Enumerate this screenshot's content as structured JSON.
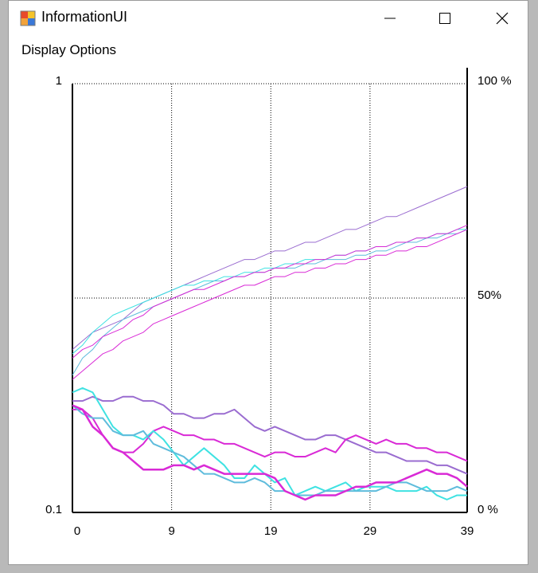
{
  "window": {
    "title": "InformationUI",
    "controls": {
      "minimize": "minimize",
      "maximize": "maximize",
      "close": "close"
    }
  },
  "menu": {
    "display_options": "Display Options"
  },
  "colors": {
    "violet": "#9a6cd0",
    "magenta": "#d92ad6",
    "cyan": "#3fe2e2",
    "skyblue": "#5fbcdc"
  },
  "chart_data": {
    "type": "line",
    "title": "",
    "x": [
      0,
      1,
      2,
      3,
      4,
      5,
      6,
      7,
      8,
      9,
      10,
      11,
      12,
      13,
      14,
      15,
      16,
      17,
      18,
      19,
      20,
      21,
      22,
      23,
      24,
      25,
      26,
      27,
      28,
      29,
      30,
      31,
      32,
      33,
      34,
      35,
      36,
      37,
      38,
      39
    ],
    "x_tick_labels": [
      "0",
      "9",
      "19",
      "29",
      "39"
    ],
    "x_ticks": [
      0,
      9.8,
      19.6,
      29.4,
      39
    ],
    "left_axis": {
      "scale": "log",
      "range": [
        0.1,
        1
      ],
      "tick_labels": [
        "1",
        "0.1"
      ]
    },
    "right_axis": {
      "range": [
        0,
        100
      ],
      "tick_labels": [
        "100 %",
        "50%",
        "0 %"
      ]
    },
    "grid": true,
    "series": [
      {
        "color": "#9a6cd0",
        "width": 1,
        "values": [
          38,
          40,
          42,
          43,
          44,
          45,
          47,
          49,
          50,
          51,
          52,
          53,
          54,
          55,
          56,
          57,
          58,
          59,
          59,
          60,
          61,
          61,
          62,
          63,
          63,
          64,
          65,
          66,
          66,
          67,
          68,
          69,
          69,
          70,
          71,
          72,
          73,
          74,
          75,
          76
        ]
      },
      {
        "color": "#3fe2e2",
        "width": 1,
        "values": [
          37,
          39,
          42,
          44,
          46,
          47,
          48,
          49,
          50,
          51,
          52,
          53,
          53,
          54,
          54,
          55,
          55,
          56,
          56,
          57,
          57,
          58,
          58,
          59,
          59,
          59,
          60,
          60,
          61,
          61,
          62,
          62,
          63,
          63,
          64,
          64,
          65,
          65,
          66,
          66
        ]
      },
      {
        "color": "#5fbcdc",
        "width": 1,
        "values": [
          32,
          36,
          38,
          41,
          43,
          45,
          46,
          47,
          48,
          49,
          50,
          51,
          52,
          53,
          54,
          54,
          55,
          55,
          56,
          56,
          57,
          57,
          57,
          58,
          58,
          59,
          59,
          59,
          60,
          60,
          61,
          61,
          62,
          63,
          63,
          64,
          64,
          65,
          65,
          66
        ]
      },
      {
        "color": "#d92ad6",
        "width": 1,
        "values": [
          36,
          38,
          39,
          41,
          42,
          43,
          45,
          46,
          48,
          49,
          50,
          51,
          52,
          52,
          53,
          54,
          55,
          55,
          56,
          56,
          57,
          57,
          58,
          58,
          59,
          59,
          60,
          60,
          61,
          61,
          62,
          62,
          63,
          63,
          64,
          64,
          65,
          65,
          66,
          67
        ]
      },
      {
        "color": "#d92ad6",
        "width": 1,
        "values": [
          31,
          33,
          35,
          37,
          38,
          40,
          41,
          42,
          44,
          45,
          46,
          47,
          48,
          49,
          50,
          51,
          52,
          53,
          53,
          54,
          55,
          55,
          56,
          56,
          57,
          57,
          58,
          58,
          59,
          59,
          60,
          60,
          61,
          61,
          62,
          62,
          63,
          64,
          65,
          66
        ]
      },
      {
        "color": "#9a6cd0",
        "width": 2,
        "values": [
          26,
          26,
          27,
          26,
          26,
          27,
          27,
          26,
          26,
          25,
          23,
          23,
          22,
          22,
          23,
          23,
          24,
          22,
          20,
          19,
          20,
          19,
          18,
          17,
          17,
          18,
          18,
          17,
          16,
          15,
          14,
          14,
          13,
          12,
          12,
          12,
          11,
          11,
          10,
          9
        ]
      },
      {
        "color": "#d92ad6",
        "width": 2,
        "values": [
          24,
          24,
          22,
          18,
          15,
          14,
          14,
          16,
          19,
          20,
          19,
          18,
          18,
          17,
          17,
          16,
          16,
          15,
          14,
          13,
          14,
          14,
          13,
          13,
          14,
          15,
          14,
          17,
          18,
          17,
          16,
          17,
          16,
          16,
          15,
          15,
          14,
          14,
          13,
          12
        ]
      },
      {
        "color": "#3fe2e2",
        "width": 2,
        "values": [
          28,
          29,
          28,
          24,
          20,
          18,
          18,
          17,
          19,
          17,
          14,
          11,
          13,
          15,
          13,
          11,
          8,
          8,
          11,
          9,
          7,
          8,
          4,
          5,
          6,
          5,
          6,
          7,
          5,
          6,
          6,
          6,
          5,
          5,
          5,
          6,
          4,
          3,
          4,
          4
        ]
      },
      {
        "color": "#5fbcdc",
        "width": 2,
        "values": [
          25,
          23,
          22,
          22,
          19,
          18,
          18,
          19,
          16,
          15,
          14,
          13,
          11,
          9,
          9,
          8,
          7,
          7,
          8,
          7,
          5,
          5,
          4,
          4,
          4,
          5,
          5,
          5,
          5,
          5,
          5,
          6,
          7,
          7,
          6,
          5,
          5,
          5,
          6,
          5
        ]
      },
      {
        "color": "#d92ad6",
        "width": 2.5,
        "values": [
          25,
          24,
          20,
          18,
          15,
          14,
          12,
          10,
          10,
          10,
          11,
          11,
          10,
          11,
          10,
          9,
          9,
          9,
          9,
          9,
          8,
          5,
          4,
          3,
          4,
          4,
          4,
          5,
          6,
          6,
          7,
          7,
          7,
          8,
          9,
          10,
          9,
          9,
          8,
          6
        ]
      }
    ]
  }
}
